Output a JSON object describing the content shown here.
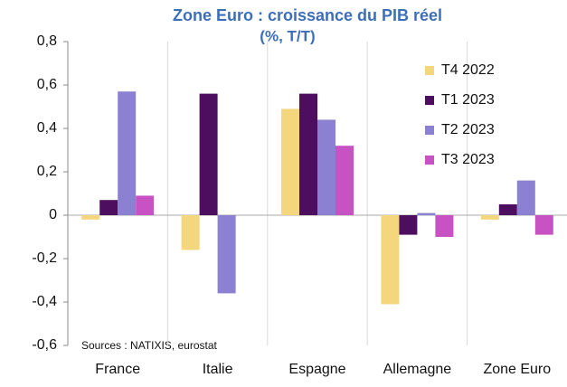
{
  "chart_data": {
    "type": "bar",
    "title": "Zone Euro : croissance du PIB réel",
    "subtitle": "(%, T/T)",
    "annotation": "Sources : NATIXIS, eurostat",
    "categories": [
      "France",
      "Italie",
      "Espagne",
      "Allemagne",
      "Zone Euro"
    ],
    "series": [
      {
        "name": "T4 2022",
        "color": "#f4d67c",
        "values": [
          -0.02,
          -0.16,
          0.49,
          -0.41,
          -0.02
        ]
      },
      {
        "name": "T1 2023",
        "color": "#4e0e60",
        "values": [
          0.07,
          0.56,
          0.56,
          -0.09,
          0.05
        ]
      },
      {
        "name": "T2 2023",
        "color": "#8b80d2",
        "values": [
          0.57,
          -0.36,
          0.44,
          0.01,
          0.16
        ]
      },
      {
        "name": "T3 2023",
        "color": "#c852c3",
        "values": [
          0.09,
          0,
          0.32,
          -0.1,
          -0.09
        ]
      }
    ],
    "ylim": [
      -0.6,
      0.8
    ],
    "yticks": [
      {
        "value": 0.8,
        "label": "0,8"
      },
      {
        "value": 0.6,
        "label": "0,6"
      },
      {
        "value": 0.4,
        "label": "0,4"
      },
      {
        "value": 0.2,
        "label": "0,2"
      },
      0,
      {
        "value": -0.2,
        "label": "-0,2"
      },
      {
        "value": -0.4,
        "label": "-0,4"
      },
      {
        "value": -0.6,
        "label": "-0,6"
      }
    ],
    "legend": "top-right",
    "title_color": "#3d6fb8"
  }
}
